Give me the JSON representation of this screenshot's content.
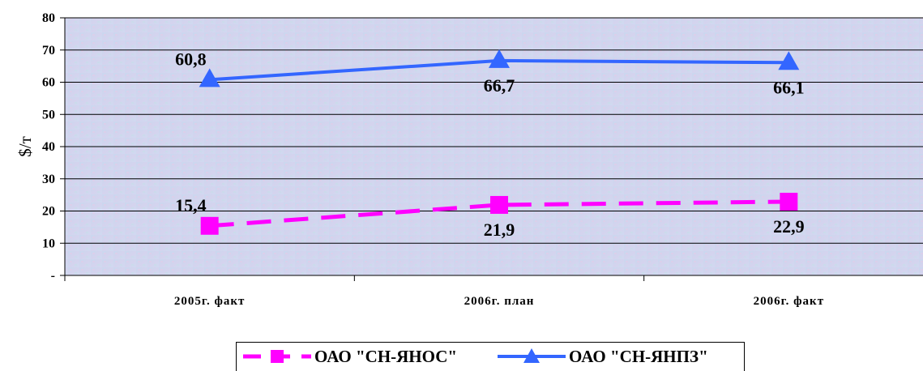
{
  "chart_data": {
    "type": "line",
    "categories": [
      "2005г. факт",
      "2006г. план",
      "2006г. факт"
    ],
    "series": [
      {
        "name": "ОАО \"СН-ЯНОС\"",
        "values": [
          15.4,
          21.9,
          22.9
        ],
        "labels": [
          "15,4",
          "21,9",
          "22,9"
        ],
        "color": "#ff00ff",
        "marker": "square",
        "line": "dashed"
      },
      {
        "name": "ОАО \"СН-ЯНПЗ\"",
        "values": [
          60.8,
          66.7,
          66.1
        ],
        "labels": [
          "60,8",
          "66,7",
          "66,1"
        ],
        "color": "#3366ff",
        "marker": "triangle",
        "line": "solid"
      }
    ],
    "ylabel": "$/т",
    "ylim": [
      0,
      80
    ],
    "yticks": [
      {
        "value": 0,
        "label": "-"
      },
      {
        "value": 10,
        "label": "10"
      },
      {
        "value": 20,
        "label": "20"
      },
      {
        "value": 30,
        "label": "30"
      },
      {
        "value": 40,
        "label": "40"
      },
      {
        "value": 50,
        "label": "50"
      },
      {
        "value": 60,
        "label": "60"
      },
      {
        "value": 70,
        "label": "70"
      },
      {
        "value": 80,
        "label": "80"
      }
    ],
    "grid": true,
    "legend_position": "bottom"
  }
}
